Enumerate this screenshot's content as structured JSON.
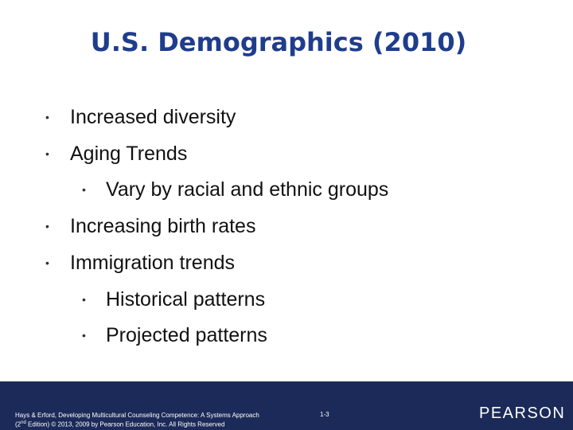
{
  "slide": {
    "title": "U.S. Demographics (2010)",
    "bullets": [
      {
        "text": "Increased diversity",
        "subitems": []
      },
      {
        "text": "Aging Trends",
        "subitems": [
          "Vary by racial and ethnic groups"
        ]
      },
      {
        "text": "Increasing birth rates",
        "subitems": []
      },
      {
        "text": "Immigration trends",
        "subitems": [
          "Historical patterns",
          "Projected patterns"
        ]
      }
    ],
    "footer": {
      "citation_line1": "Hays & Erford, Developing Multicultural Counseling Competence: A Systems Approach",
      "citation_line2": [
        "(2",
        "nd",
        " Edition) © 2013, 2009 by Pearson Education, Inc. All Rights Reserved"
      ],
      "page_number": "1-3",
      "logo": "PEARSON"
    }
  }
}
